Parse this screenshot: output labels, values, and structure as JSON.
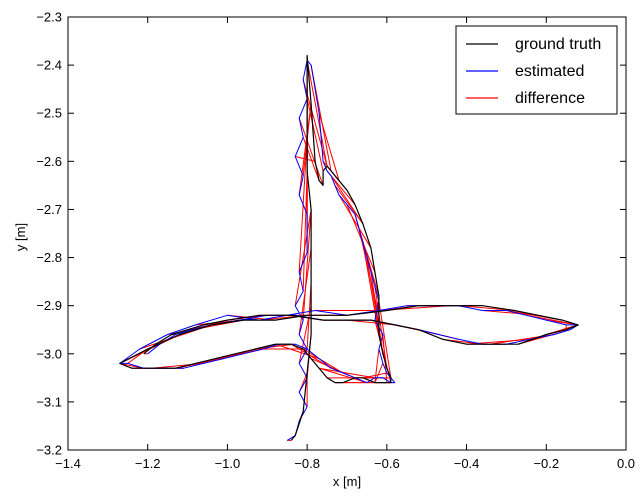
{
  "chart_data": {
    "type": "line",
    "title": "",
    "xlabel": "x [m]",
    "ylabel": "y [m]",
    "xlim": [
      -1.4,
      0.0
    ],
    "ylim": [
      -3.2,
      -2.3
    ],
    "grid": false,
    "legend_position": "top-right",
    "x_ticks": [
      -1.4,
      -1.2,
      -1.0,
      -0.8,
      -0.6,
      -0.4,
      -0.2,
      0.0
    ],
    "x_tick_labels": [
      "−1.4",
      "−1.2",
      "−1.0",
      "−0.8",
      "−0.6",
      "−0.4",
      "−0.2",
      "0.0"
    ],
    "y_ticks": [
      -2.3,
      -2.4,
      -2.5,
      -2.6,
      -2.7,
      -2.8,
      -2.9,
      -3.0,
      -3.1,
      -3.2
    ],
    "y_tick_labels": [
      "−2.3",
      "−2.4",
      "−2.5",
      "−2.6",
      "−2.7",
      "−2.8",
      "−2.9",
      "−3.0",
      "−3.1",
      "−3.2"
    ],
    "series": [
      {
        "name": "ground truth",
        "color": "#000000",
        "x": [
          -0.84,
          -0.83,
          -0.81,
          -0.8,
          -0.79,
          -0.79,
          -0.79,
          -0.79,
          -0.79,
          -0.8,
          -0.8,
          -0.8,
          -0.8,
          -0.8,
          -0.79,
          -0.78,
          -0.77,
          -0.76,
          -0.76,
          -0.75,
          -0.74,
          -0.72,
          -0.7,
          -0.68,
          -0.66,
          -0.64,
          -0.63,
          -0.62,
          -0.62,
          -0.62,
          -0.61,
          -0.6,
          -0.59,
          -0.59,
          -0.6,
          -0.63,
          -0.66,
          -0.68,
          -0.71,
          -0.73,
          -0.75,
          -0.77,
          -0.79,
          -0.81,
          -0.84,
          -0.88,
          -0.93,
          -0.98,
          -1.03,
          -1.08,
          -1.13,
          -1.19,
          -1.24,
          -1.27,
          -1.2,
          -1.12,
          -1.04,
          -0.96,
          -0.88,
          -0.8,
          -0.7,
          -0.6,
          -0.52,
          -0.44,
          -0.36,
          -0.28,
          -0.22,
          -0.16,
          -0.12,
          -0.15,
          -0.2,
          -0.27,
          -0.34,
          -0.4,
          -0.46,
          -0.52,
          -0.58,
          -0.64,
          -0.7,
          -0.76,
          -0.84,
          -0.92,
          -1.0,
          -1.06,
          -1.1,
          -1.14,
          -1.18,
          -1.21
        ],
        "y": [
          -3.18,
          -3.17,
          -3.12,
          -3.04,
          -2.96,
          -2.9,
          -2.85,
          -2.78,
          -2.7,
          -2.62,
          -2.55,
          -2.48,
          -2.42,
          -2.38,
          -2.48,
          -2.6,
          -2.64,
          -2.65,
          -2.62,
          -2.61,
          -2.62,
          -2.64,
          -2.66,
          -2.69,
          -2.73,
          -2.78,
          -2.83,
          -2.88,
          -2.92,
          -2.96,
          -3.0,
          -3.03,
          -3.05,
          -3.06,
          -3.06,
          -3.06,
          -3.05,
          -3.05,
          -3.06,
          -3.06,
          -3.05,
          -3.03,
          -3.01,
          -2.99,
          -2.98,
          -2.98,
          -2.99,
          -3.0,
          -3.01,
          -3.02,
          -3.03,
          -3.03,
          -3.03,
          -3.02,
          -2.99,
          -2.96,
          -2.94,
          -2.93,
          -2.93,
          -2.92,
          -2.92,
          -2.91,
          -2.9,
          -2.9,
          -2.9,
          -2.91,
          -2.92,
          -2.93,
          -2.94,
          -2.95,
          -2.96,
          -2.98,
          -2.98,
          -2.98,
          -2.97,
          -2.95,
          -2.94,
          -2.93,
          -2.93,
          -2.93,
          -2.92,
          -2.92,
          -2.93,
          -2.94,
          -2.95,
          -2.96,
          -2.98,
          -3.0
        ]
      },
      {
        "name": "estimated",
        "color": "#0000ff",
        "x": [
          -0.85,
          -0.83,
          -0.82,
          -0.8,
          -0.82,
          -0.8,
          -0.82,
          -0.8,
          -0.82,
          -0.81,
          -0.83,
          -0.81,
          -0.82,
          -0.8,
          -0.8,
          -0.8,
          -0.82,
          -0.81,
          -0.83,
          -0.81,
          -0.82,
          -0.8,
          -0.81,
          -0.8,
          -0.79,
          -0.77,
          -0.76,
          -0.75,
          -0.74,
          -0.73,
          -0.72,
          -0.7,
          -0.68,
          -0.67,
          -0.66,
          -0.65,
          -0.64,
          -0.63,
          -0.62,
          -0.63,
          -0.61,
          -0.62,
          -0.61,
          -0.6,
          -0.59,
          -0.58,
          -0.59,
          -0.61,
          -0.63,
          -0.65,
          -0.68,
          -0.71,
          -0.74,
          -0.77,
          -0.8,
          -0.83,
          -0.87,
          -0.91,
          -0.96,
          -1.01,
          -1.06,
          -1.11,
          -1.16,
          -1.21,
          -1.25,
          -1.27,
          -1.22,
          -1.15,
          -1.08,
          -1.0,
          -0.92,
          -0.85,
          -0.78,
          -0.7,
          -0.62,
          -0.55,
          -0.48,
          -0.42,
          -0.36,
          -0.3,
          -0.25,
          -0.2,
          -0.15,
          -0.12,
          -0.14,
          -0.18,
          -0.24,
          -0.3,
          -0.36,
          -0.42,
          -0.47,
          -0.52,
          -0.58,
          -0.64,
          -0.7,
          -0.76,
          -0.83,
          -0.9,
          -0.97,
          -1.04,
          -1.09,
          -1.13,
          -1.17,
          -1.2
        ],
        "y": [
          -3.18,
          -3.17,
          -3.14,
          -3.11,
          -3.08,
          -3.05,
          -3.02,
          -2.99,
          -2.96,
          -2.93,
          -2.9,
          -2.87,
          -2.83,
          -2.79,
          -2.75,
          -2.71,
          -2.67,
          -2.63,
          -2.59,
          -2.55,
          -2.51,
          -2.47,
          -2.43,
          -2.39,
          -2.4,
          -2.5,
          -2.6,
          -2.62,
          -2.63,
          -2.65,
          -2.67,
          -2.69,
          -2.71,
          -2.74,
          -2.77,
          -2.8,
          -2.83,
          -2.86,
          -2.89,
          -2.93,
          -2.96,
          -2.99,
          -3.02,
          -3.04,
          -3.05,
          -3.06,
          -3.06,
          -3.05,
          -3.05,
          -3.06,
          -3.05,
          -3.04,
          -3.03,
          -3.01,
          -2.99,
          -2.98,
          -2.98,
          -2.99,
          -3.0,
          -3.01,
          -3.02,
          -3.03,
          -3.03,
          -3.03,
          -3.02,
          -3.02,
          -2.99,
          -2.96,
          -2.94,
          -2.92,
          -2.93,
          -2.92,
          -2.91,
          -2.92,
          -2.91,
          -2.9,
          -2.9,
          -2.9,
          -2.91,
          -2.91,
          -2.92,
          -2.93,
          -2.94,
          -2.94,
          -2.95,
          -2.96,
          -2.97,
          -2.98,
          -2.98,
          -2.97,
          -2.96,
          -2.95,
          -2.94,
          -2.93,
          -2.93,
          -2.93,
          -2.92,
          -2.92,
          -2.93,
          -2.94,
          -2.95,
          -2.96,
          -2.98,
          -3.0
        ]
      },
      {
        "name": "difference",
        "color": "#ff0000",
        "x": [],
        "y": []
      }
    ]
  }
}
